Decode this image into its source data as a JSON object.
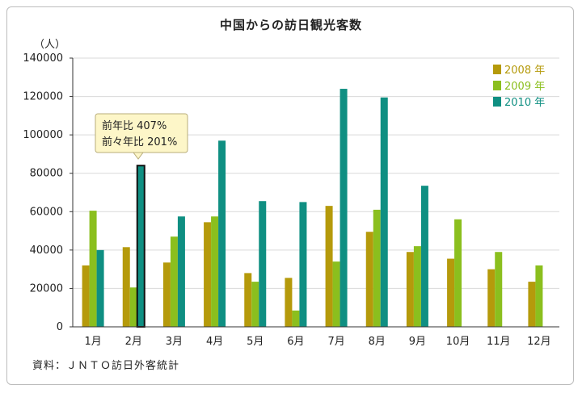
{
  "chart_data": {
    "type": "bar",
    "title": "中国からの訪日観光客数",
    "ylabel": "（人）",
    "categories": [
      "1月",
      "2月",
      "3月",
      "4月",
      "5月",
      "6月",
      "7月",
      "8月",
      "9月",
      "10月",
      "11月",
      "12月"
    ],
    "series": [
      {
        "name": "2008 年",
        "color": "#b59a0b",
        "values": [
          32000,
          41500,
          33500,
          54500,
          28000,
          25500,
          63000,
          49500,
          39000,
          35500,
          30000,
          23500
        ]
      },
      {
        "name": "2009 年",
        "color": "#8bbf1e",
        "values": [
          60500,
          20500,
          47000,
          57500,
          23500,
          8500,
          34000,
          61000,
          42000,
          56000,
          39000,
          32000
        ]
      },
      {
        "name": "2010 年",
        "color": "#0f8f82",
        "values": [
          40000,
          84000,
          57500,
          97000,
          65500,
          65000,
          124000,
          119500,
          73500,
          null,
          null,
          null
        ]
      }
    ],
    "ylim": [
      0,
      140000
    ],
    "yticks": [
      0,
      20000,
      40000,
      60000,
      80000,
      100000,
      120000,
      140000
    ],
    "legend": "top-right",
    "annotation": {
      "line1": "前年比 407%",
      "line2": "前々年比 201%",
      "target_category": "2月",
      "target_series": "2010 年"
    }
  },
  "source": "資料：ＪＮＴＯ訪日外客統計"
}
